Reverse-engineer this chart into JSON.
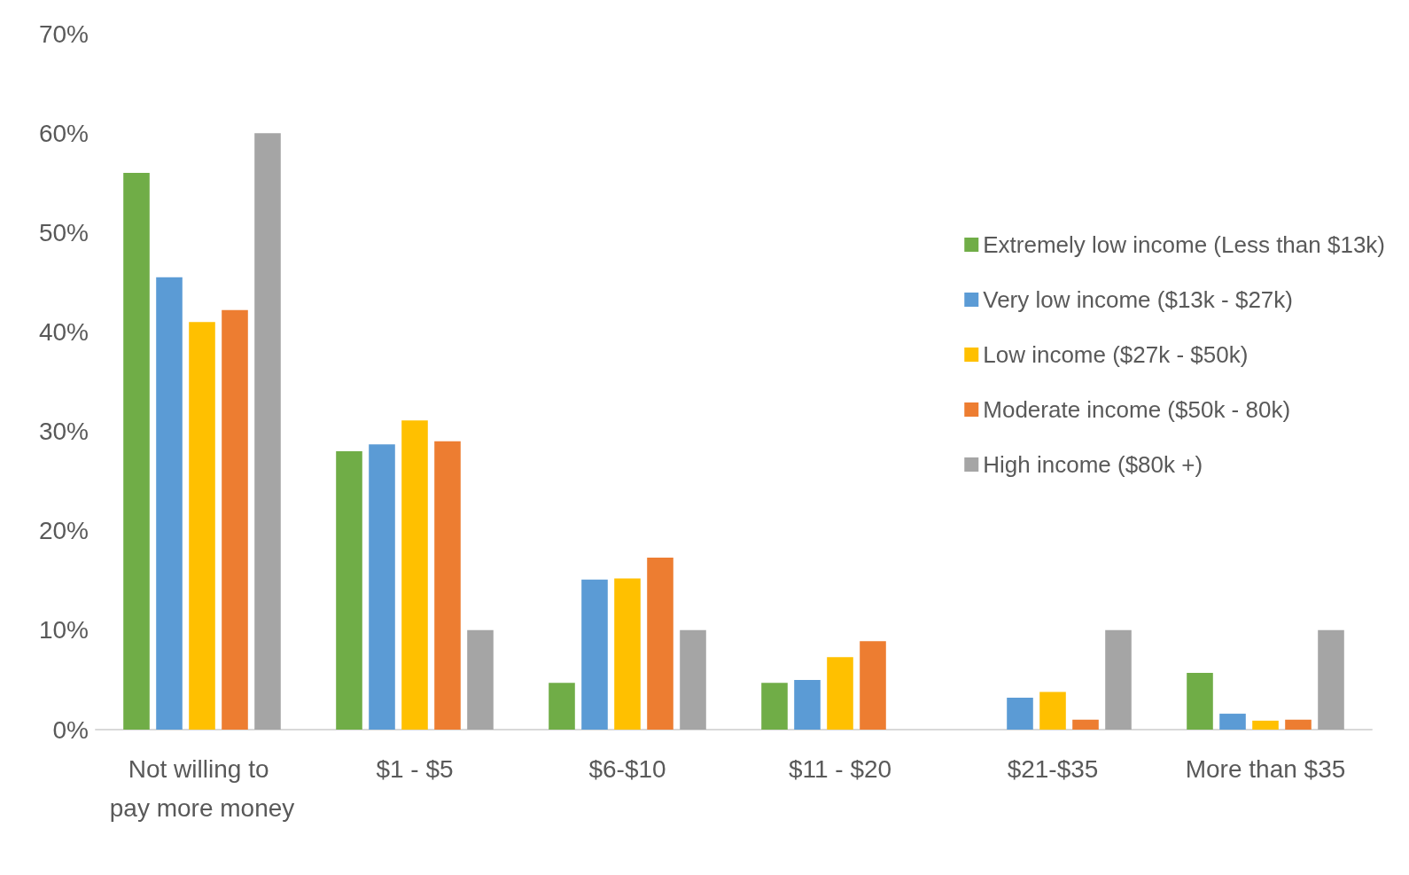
{
  "chart_data": {
    "type": "bar",
    "categories": [
      "Not willing to pay more money",
      "$1 - $5",
      "$6-$10",
      "$11 - $20",
      "$21-$35",
      "More than $35"
    ],
    "series": [
      {
        "name": "Extremely low income (Less than $13k)",
        "color": "#70ad47",
        "values": [
          56,
          28,
          4.7,
          4.7,
          0,
          5.7
        ]
      },
      {
        "name": "Very low income ($13k - $27k)",
        "color": "#5b9bd5",
        "values": [
          45.5,
          28.7,
          15.1,
          5,
          3.2,
          1.6
        ]
      },
      {
        "name": "Low income ($27k - $50k)",
        "color": "#ffc000",
        "values": [
          41,
          31.1,
          15.2,
          7.3,
          3.8,
          0.9
        ]
      },
      {
        "name": "Moderate income ($50k - 80k)",
        "color": "#ed7d31",
        "values": [
          42.2,
          29,
          17.3,
          8.9,
          1,
          1
        ]
      },
      {
        "name": "High income ($80k +)",
        "color": "#a5a5a5",
        "values": [
          60,
          10,
          10,
          0,
          10,
          10
        ]
      }
    ],
    "ylim": [
      0,
      70
    ],
    "yticks": [
      {
        "value": 0,
        "label": "0%"
      },
      {
        "value": 10,
        "label": "10%"
      },
      {
        "value": 20,
        "label": "20%"
      },
      {
        "value": 30,
        "label": "30%"
      },
      {
        "value": 40,
        "label": "40%"
      },
      {
        "value": 50,
        "label": "50%"
      },
      {
        "value": 60,
        "label": "60%"
      },
      {
        "value": 70,
        "label": "70%"
      }
    ],
    "grid": false,
    "legend": "right"
  }
}
